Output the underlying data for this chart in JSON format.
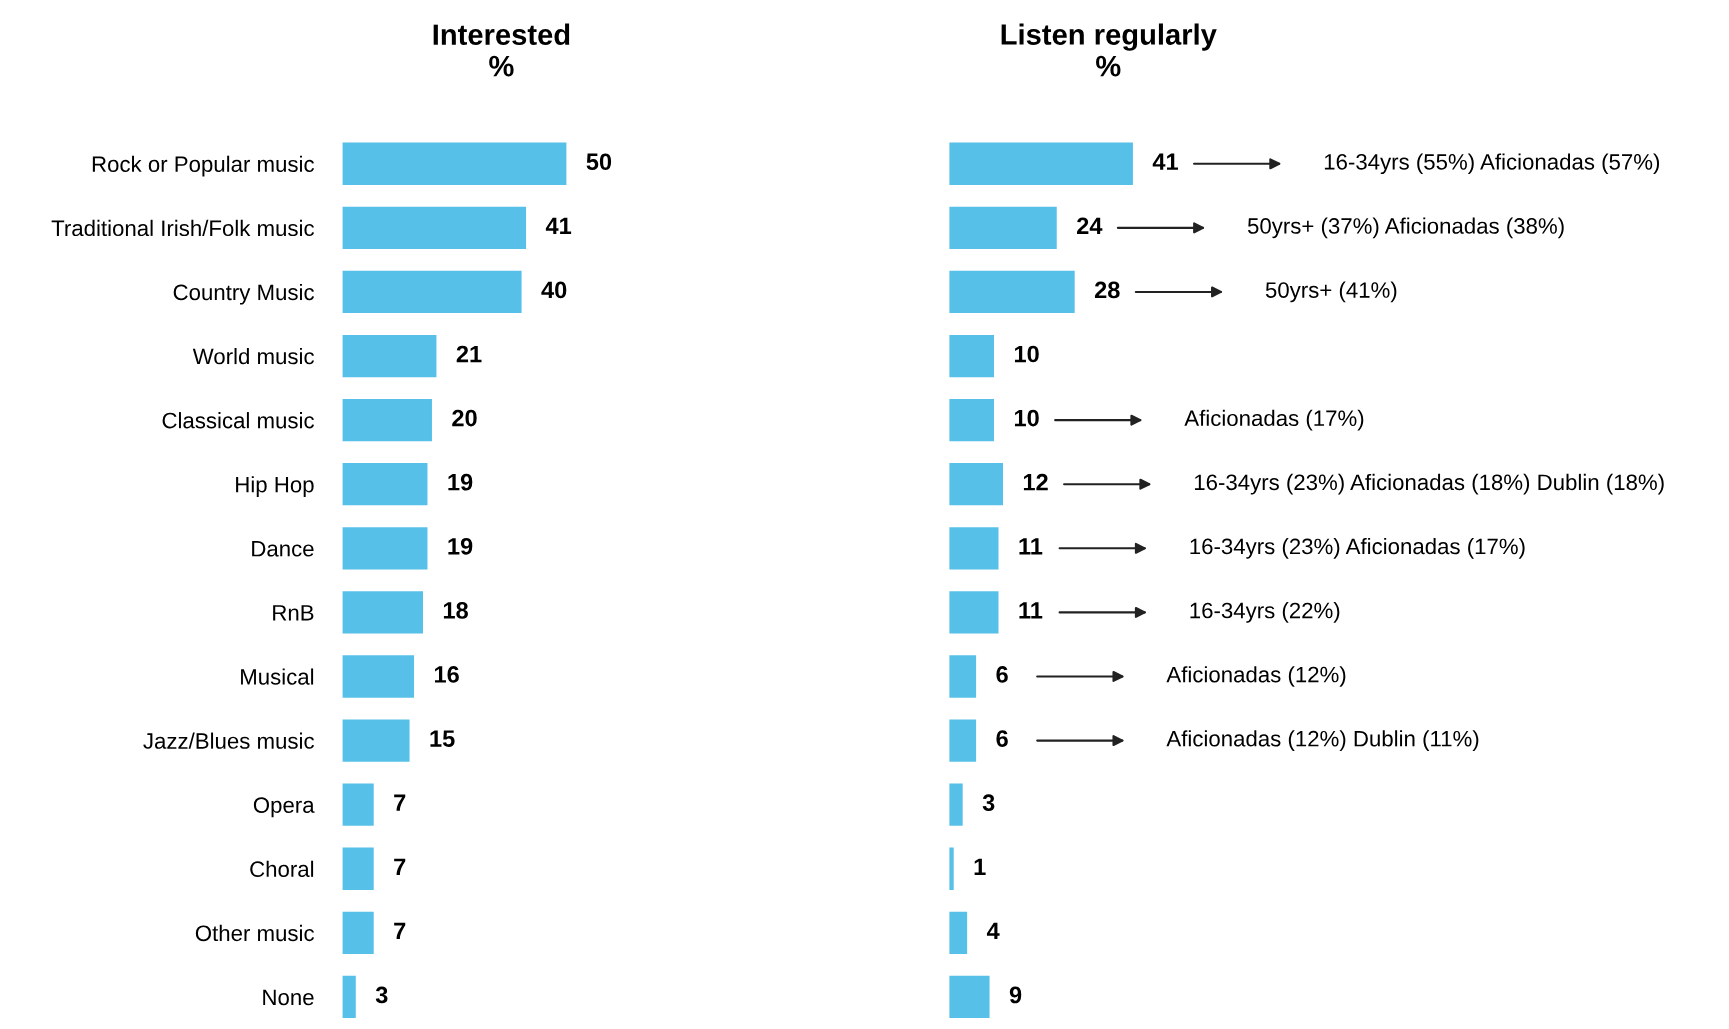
{
  "chart_data": [
    {
      "type": "bar",
      "orientation": "horizontal",
      "title": "Interested\n%",
      "categories": [
        "Rock or Popular music",
        "Traditional Irish/Folk music",
        "Country Music",
        "World music",
        "Classical music",
        "Hip Hop",
        "Dance",
        "RnB",
        "Musical",
        "Jazz/Blues music",
        "Opera",
        "Choral",
        "Other music",
        "None"
      ],
      "values": [
        50,
        41,
        40,
        21,
        20,
        19,
        19,
        18,
        16,
        15,
        7,
        7,
        7,
        3
      ],
      "color": "#56c0e8",
      "data_labels": true,
      "tick_labels": "y",
      "grid": false,
      "legend": false
    },
    {
      "type": "bar",
      "orientation": "horizontal",
      "title": "Listen regularly\n%",
      "categories": [
        null,
        null,
        null,
        null,
        null,
        null,
        null,
        null,
        null,
        null,
        null,
        null,
        null,
        null
      ],
      "values": [
        41,
        24,
        28,
        10,
        10,
        12,
        11,
        11,
        6,
        6,
        3,
        1,
        4,
        9
      ],
      "color": "#56c0e8",
      "data_labels": true,
      "tick_labels": false,
      "grid": false,
      "legend": false,
      "annotations": [
        "16-34yrs (55%) Aficionadas (57%)",
        "50yrs+ (37%) Aficionadas (38%)",
        "50yrs+ (41%)",
        null,
        "Aficionadas (17%)",
        "16-34yrs (23%) Aficionadas (18%) Dublin (18%)",
        "16-34yrs (23%) Aficionadas (17%)",
        "16-34yrs (22%)",
        "Aficionadas (12%)",
        "Aficionadas (12%) Dublin (11%)"
      ]
    }
  ]
}
